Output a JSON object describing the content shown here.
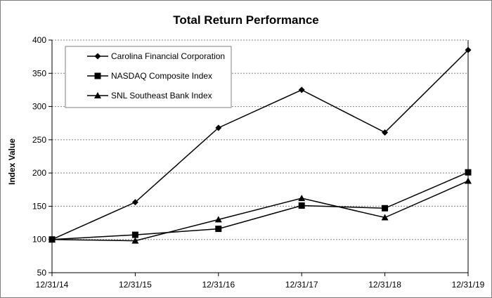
{
  "chart_data": {
    "type": "line",
    "title": "Total Return Performance",
    "xlabel": "",
    "ylabel": "Index Value",
    "ylim": [
      50,
      400
    ],
    "yticks": [
      50,
      100,
      150,
      200,
      250,
      300,
      350,
      400
    ],
    "grid": "horizontal dashed",
    "legend_position": "top-left",
    "categories": [
      "12/31/14",
      "12/31/15",
      "12/31/16",
      "12/31/17",
      "12/31/18",
      "12/31/19"
    ],
    "series": [
      {
        "name": "Carolina Financial Corporation",
        "marker": "diamond",
        "values": [
          100,
          156,
          268,
          325,
          261,
          385
        ]
      },
      {
        "name": "NASDAQ Composite Index",
        "marker": "square",
        "values": [
          100,
          107,
          116,
          151,
          147,
          201
        ]
      },
      {
        "name": "SNL Southeast Bank Index",
        "marker": "triangle",
        "values": [
          100,
          98,
          130,
          162,
          133,
          188
        ]
      }
    ],
    "colors": {
      "line": "#000000",
      "grid": "#808080",
      "frame": "#7f7f7f"
    }
  }
}
